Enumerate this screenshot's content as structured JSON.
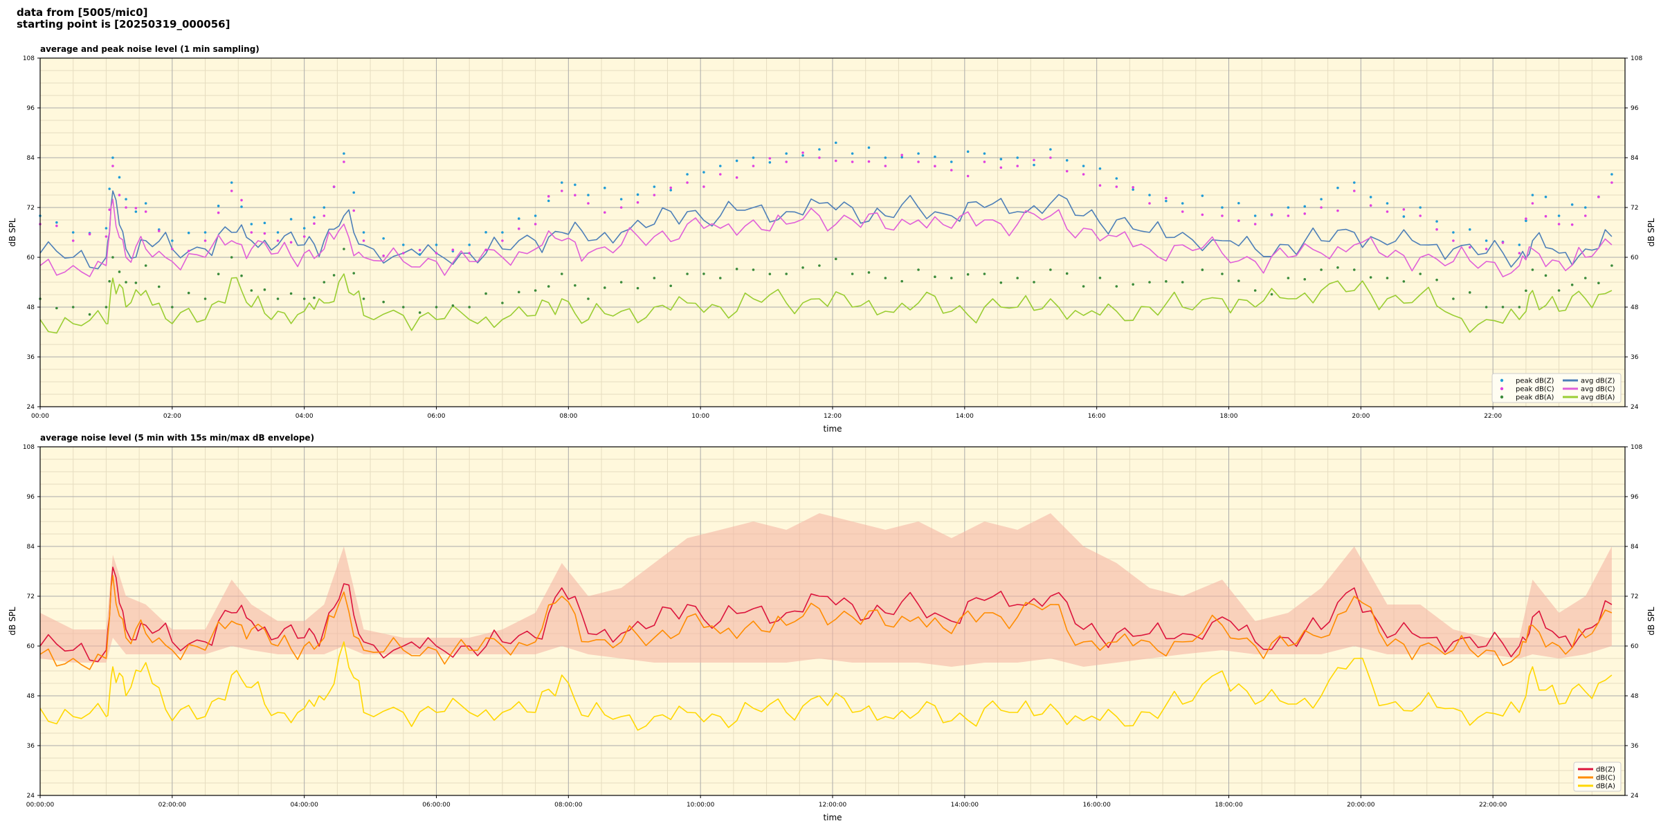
{
  "header": {
    "line1": "data from [5005/mic0]",
    "line2": "starting point is [20250319_000056]"
  },
  "colors": {
    "background": "#fff8dc",
    "grid_major": "#aaaaaa",
    "grid_minor": "#e6ddc0",
    "peak_z": "#1f9bd6",
    "peak_c": "#e040e0",
    "peak_a": "#3a8a3a",
    "avg_z": "#4d7fb8",
    "avg_c": "#e060d8",
    "avg_a": "#9acd32",
    "env_z": "#dc143c",
    "env_c": "#ff8c00",
    "env_a": "#ffd700",
    "envelope_fill": "#f4b0a0"
  },
  "chart_data": [
    {
      "type": "line",
      "title": "average and peak noise level (1 min sampling)",
      "xlabel": "time",
      "ylabel": "dB SPL",
      "ylim": [
        24,
        108
      ],
      "yticks": [
        24,
        36,
        48,
        60,
        72,
        84,
        96,
        108
      ],
      "xlim_hours": [
        0,
        24
      ],
      "xticks": [
        "00:00",
        "02:00",
        "04:00",
        "06:00",
        "08:00",
        "10:00",
        "12:00",
        "14:00",
        "16:00",
        "18:00",
        "20:00",
        "22:00"
      ],
      "grid": true,
      "legend_position": "bottom-right",
      "legend": [
        "peak dB(Z)",
        "peak dB(C)",
        "peak dB(A)",
        "avg dB(Z)",
        "avg dB(C)",
        "avg dB(A)"
      ],
      "x_hours": [
        0,
        0.5,
        1.0,
        1.1,
        1.3,
        1.6,
        2.0,
        2.5,
        2.9,
        3.2,
        3.6,
        4.0,
        4.3,
        4.6,
        4.9,
        5.5,
        6.0,
        6.5,
        7.0,
        7.5,
        7.9,
        8.3,
        8.8,
        9.3,
        9.8,
        10.3,
        10.8,
        11.3,
        11.8,
        12.3,
        12.8,
        13.3,
        13.8,
        14.3,
        14.8,
        15.3,
        15.8,
        16.3,
        16.8,
        17.3,
        17.9,
        18.4,
        18.9,
        19.4,
        19.9,
        20.4,
        20.9,
        21.4,
        21.9,
        22.4,
        22.6,
        23.0,
        23.4,
        23.8
      ],
      "series": [
        {
          "name": "avg dB(Z)",
          "values": [
            61,
            60,
            60,
            76,
            62,
            64,
            62,
            62,
            66,
            64,
            63,
            63,
            64,
            70,
            63,
            61,
            61,
            61,
            62,
            64,
            66,
            64,
            66,
            68,
            71,
            70,
            72,
            71,
            73,
            72,
            70,
            72,
            70,
            72,
            71,
            73,
            70,
            69,
            66,
            66,
            64,
            62,
            63,
            64,
            66,
            63,
            63,
            62,
            61,
            60,
            64,
            61,
            62,
            65
          ]
        },
        {
          "name": "avg dB(C)",
          "values": [
            58,
            58,
            58,
            74,
            60,
            62,
            59,
            60,
            64,
            62,
            61,
            61,
            62,
            68,
            60,
            59,
            59,
            59,
            60,
            62,
            64,
            61,
            63,
            65,
            68,
            67,
            69,
            68,
            70,
            69,
            67,
            69,
            67,
            69,
            68,
            70,
            67,
            65,
            62,
            63,
            61,
            59,
            60,
            61,
            63,
            60,
            60,
            59,
            59,
            58,
            62,
            59,
            60,
            63
          ]
        },
        {
          "name": "avg dB(A)",
          "values": [
            45,
            44,
            44,
            55,
            48,
            52,
            44,
            45,
            55,
            48,
            47,
            47,
            49,
            56,
            46,
            46,
            45,
            45,
            45,
            46,
            50,
            45,
            47,
            48,
            49,
            48,
            50,
            49,
            50,
            48,
            47,
            49,
            47,
            48,
            48,
            50,
            46,
            47,
            48,
            48,
            50,
            48,
            50,
            52,
            52,
            50,
            51,
            46,
            45,
            45,
            52,
            47,
            50,
            52
          ]
        },
        {
          "name": "peak dB(Z)",
          "values": [
            70,
            66,
            67,
            84,
            74,
            73,
            64,
            66,
            78,
            68,
            66,
            67,
            72,
            85,
            66,
            63,
            63,
            63,
            66,
            70,
            78,
            75,
            74,
            77,
            80,
            82,
            84,
            85,
            86,
            85,
            84,
            85,
            83,
            85,
            84,
            86,
            82,
            79,
            75,
            73,
            72,
            70,
            72,
            74,
            78,
            73,
            72,
            66,
            64,
            63,
            75,
            70,
            72,
            80
          ]
        },
        {
          "name": "peak dB(C)",
          "values": [
            68,
            64,
            65,
            82,
            72,
            71,
            62,
            64,
            76,
            66,
            64,
            65,
            70,
            83,
            64,
            61,
            61,
            61,
            64,
            68,
            76,
            73,
            72,
            75,
            78,
            80,
            82,
            83,
            84,
            83,
            82,
            83,
            81,
            83,
            82,
            84,
            80,
            77,
            73,
            71,
            70,
            68,
            70,
            72,
            76,
            71,
            70,
            64,
            62,
            61,
            73,
            68,
            70,
            78
          ]
        },
        {
          "name": "peak dB(A)",
          "values": [
            50,
            48,
            48,
            60,
            54,
            58,
            48,
            50,
            60,
            52,
            50,
            50,
            54,
            62,
            50,
            48,
            48,
            48,
            49,
            52,
            56,
            50,
            54,
            55,
            56,
            55,
            57,
            56,
            58,
            56,
            55,
            57,
            55,
            56,
            55,
            57,
            53,
            53,
            54,
            54,
            56,
            52,
            55,
            57,
            57,
            55,
            56,
            50,
            48,
            48,
            57,
            52,
            55,
            58
          ]
        }
      ]
    },
    {
      "type": "line",
      "title": "average noise level (5 min with 15s min/max dB envelope)",
      "xlabel": "time",
      "ylabel": "dB SPL",
      "ylim": [
        24,
        108
      ],
      "yticks": [
        24,
        36,
        48,
        60,
        72,
        84,
        96,
        108
      ],
      "xlim_hours": [
        0,
        24
      ],
      "xticks": [
        "00:00:00",
        "02:00:00",
        "04:00:00",
        "06:00:00",
        "08:00:00",
        "10:00:00",
        "12:00:00",
        "14:00:00",
        "16:00:00",
        "18:00:00",
        "20:00:00",
        "22:00:00"
      ],
      "grid": true,
      "legend_position": "bottom-right",
      "legend": [
        "dB(Z)",
        "dB(C)",
        "dB(A)"
      ],
      "x_hours": [
        0,
        0.5,
        1.0,
        1.1,
        1.3,
        1.6,
        2.0,
        2.5,
        2.9,
        3.2,
        3.6,
        4.0,
        4.3,
        4.6,
        4.9,
        5.5,
        6.0,
        6.5,
        7.0,
        7.5,
        7.9,
        8.3,
        8.8,
        9.3,
        9.8,
        10.3,
        10.8,
        11.3,
        11.8,
        12.3,
        12.8,
        13.3,
        13.8,
        14.3,
        14.8,
        15.3,
        15.8,
        16.3,
        16.8,
        17.3,
        17.9,
        18.4,
        18.9,
        19.4,
        19.9,
        20.4,
        20.9,
        21.4,
        21.9,
        22.4,
        22.6,
        23.0,
        23.4,
        23.8
      ],
      "series": [
        {
          "name": "dB(Z)",
          "values": [
            60,
            59,
            59,
            79,
            64,
            65,
            61,
            61,
            68,
            66,
            62,
            62,
            64,
            75,
            61,
            60,
            60,
            60,
            61,
            62,
            74,
            63,
            63,
            65,
            70,
            66,
            69,
            68,
            72,
            70,
            68,
            70,
            66,
            71,
            70,
            72,
            64,
            63,
            63,
            63,
            67,
            61,
            62,
            64,
            74,
            62,
            62,
            61,
            60,
            60,
            67,
            62,
            64,
            70
          ]
        },
        {
          "name": "dB(C)",
          "values": [
            58,
            57,
            57,
            77,
            62,
            63,
            59,
            59,
            66,
            64,
            60,
            60,
            62,
            73,
            59,
            59,
            59,
            59,
            60,
            61,
            72,
            61,
            61,
            62,
            67,
            63,
            66,
            65,
            69,
            67,
            65,
            67,
            63,
            68,
            67,
            70,
            61,
            61,
            61,
            61,
            65,
            60,
            60,
            62,
            72,
            60,
            60,
            59,
            59,
            58,
            65,
            60,
            62,
            68
          ]
        },
        {
          "name": "dB(A)",
          "values": [
            45,
            43,
            43,
            55,
            48,
            56,
            42,
            43,
            53,
            50,
            44,
            45,
            47,
            61,
            44,
            44,
            44,
            44,
            44,
            44,
            53,
            43,
            43,
            43,
            44,
            43,
            45,
            44,
            48,
            44,
            43,
            44,
            42,
            45,
            44,
            46,
            42,
            43,
            44,
            46,
            54,
            46,
            46,
            48,
            57,
            46,
            46,
            45,
            44,
            44,
            55,
            46,
            49,
            53
          ]
        },
        {
          "name": "envelope max",
          "values": [
            68,
            64,
            64,
            82,
            72,
            70,
            64,
            64,
            76,
            70,
            66,
            66,
            70,
            84,
            64,
            62,
            62,
            62,
            64,
            68,
            80,
            72,
            74,
            80,
            86,
            88,
            90,
            88,
            92,
            90,
            88,
            90,
            86,
            90,
            88,
            92,
            84,
            80,
            74,
            72,
            76,
            66,
            68,
            74,
            84,
            70,
            70,
            64,
            62,
            62,
            76,
            68,
            72,
            84
          ]
        },
        {
          "name": "envelope min",
          "values": [
            57,
            56,
            56,
            62,
            58,
            58,
            58,
            58,
            60,
            59,
            58,
            58,
            58,
            60,
            58,
            58,
            58,
            58,
            58,
            58,
            60,
            58,
            57,
            56,
            56,
            56,
            56,
            56,
            57,
            56,
            56,
            56,
            55,
            56,
            56,
            57,
            55,
            56,
            57,
            58,
            59,
            58,
            58,
            58,
            60,
            58,
            58,
            58,
            58,
            57,
            58,
            57,
            58,
            60
          ]
        }
      ]
    }
  ]
}
